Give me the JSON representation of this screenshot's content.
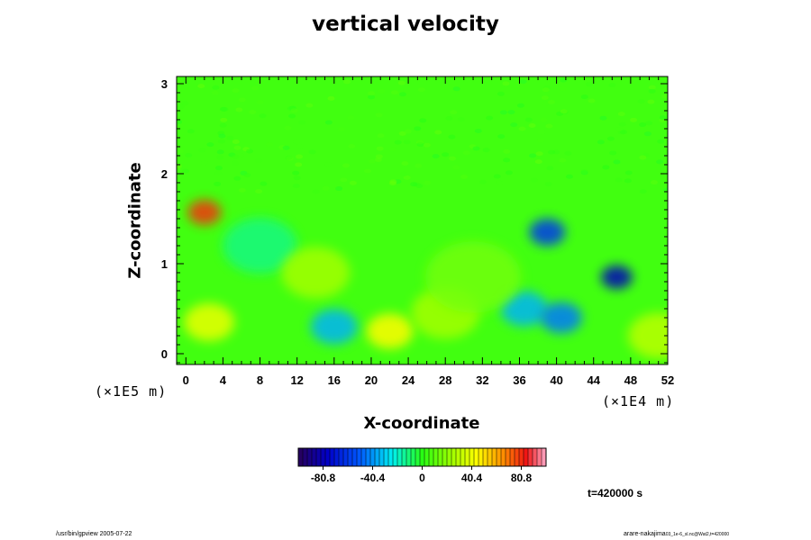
{
  "chart_data": {
    "type": "heatmap",
    "title": "vertical velocity",
    "xlabel": "X-coordinate",
    "ylabel": "Z-coordinate",
    "x_multiplier": "(×1E4 m)",
    "y_multiplier": "(×1E5 m)",
    "xlim": [
      -1,
      52
    ],
    "ylim": [
      -0.12,
      3.08
    ],
    "x_ticks": [
      "0",
      "4",
      "8",
      "12",
      "16",
      "20",
      "24",
      "28",
      "32",
      "36",
      "40",
      "44",
      "48",
      "52"
    ],
    "y_ticks": [
      "0",
      "1",
      "2",
      "3"
    ],
    "colorbar": {
      "range": [
        -101,
        101
      ],
      "tick_labels": [
        "-80.8",
        "-40.4",
        "0",
        "40.4",
        "80.8"
      ],
      "tick_values": [
        -80.8,
        -40.4,
        0,
        40.4,
        80.8
      ]
    },
    "background_value": 5,
    "features": [
      {
        "x": 2,
        "z": 1.57,
        "value": 80,
        "note": "orange updraft core"
      },
      {
        "x": 2.5,
        "z": 0.35,
        "value": 40
      },
      {
        "x": 22,
        "z": 0.25,
        "value": 45
      },
      {
        "x": 28,
        "z": 0.45,
        "value": 25
      },
      {
        "x": 16,
        "z": 0.3,
        "value": -35
      },
      {
        "x": 36.5,
        "z": 0.5,
        "value": -35
      },
      {
        "x": 46.5,
        "z": 0.85,
        "value": -80
      },
      {
        "x": 39,
        "z": 1.35,
        "value": -60
      },
      {
        "x": 40.5,
        "z": 0.4,
        "value": -45
      },
      {
        "x": 8,
        "z": 1.2,
        "value": -12
      },
      {
        "x": 31,
        "z": 0.85,
        "value": 15
      },
      {
        "x": 51,
        "z": 0.2,
        "value": 30
      },
      {
        "x": 14,
        "z": 0.9,
        "value": 25
      }
    ],
    "time_label": "t=420000 s"
  },
  "footer": {
    "left": "/usr/bin/gpview 2005-07-22",
    "right_main": "arare-nakajima",
    "right_small": "03_1e-6_sl.nc@Wat2,t=420000"
  }
}
